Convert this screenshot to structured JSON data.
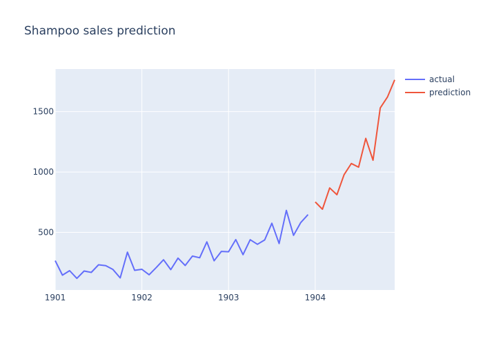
{
  "chart_data": {
    "type": "line",
    "title": "Shampoo sales prediction",
    "xlabel": "",
    "ylabel": "",
    "x_tick_labels": [
      "1901",
      "1902",
      "1903",
      "1904"
    ],
    "y_ticks": [
      500,
      1000,
      1500
    ],
    "y_tick_labels": [
      "500",
      "1000",
      "1500"
    ],
    "xlim": [
      "1901-01-01",
      "1904-12-01"
    ],
    "ylim": [
      23,
      1852
    ],
    "grid": true,
    "legend_position": "top-right",
    "series": [
      {
        "name": "actual",
        "color": "#636efa",
        "x": [
          "1901-01-01",
          "1901-02-01",
          "1901-03-01",
          "1901-04-01",
          "1901-05-01",
          "1901-06-01",
          "1901-07-01",
          "1901-08-01",
          "1901-09-01",
          "1901-10-01",
          "1901-11-01",
          "1901-12-01",
          "1902-01-01",
          "1902-02-01",
          "1902-03-01",
          "1902-04-01",
          "1902-05-01",
          "1902-06-01",
          "1902-07-01",
          "1902-08-01",
          "1902-09-01",
          "1902-10-01",
          "1902-11-01",
          "1902-12-01",
          "1903-01-01",
          "1903-02-01",
          "1903-03-01",
          "1903-04-01",
          "1903-05-01",
          "1903-06-01",
          "1903-07-01",
          "1903-08-01",
          "1903-09-01",
          "1903-10-01",
          "1903-11-01",
          "1903-12-01"
        ],
        "values": [
          266.0,
          145.9,
          183.1,
          119.3,
          180.3,
          168.5,
          231.8,
          224.5,
          192.8,
          122.9,
          336.5,
          185.9,
          194.3,
          149.5,
          210.1,
          273.3,
          191.4,
          287.0,
          226.0,
          303.6,
          289.9,
          421.6,
          264.5,
          342.3,
          339.7,
          440.4,
          315.9,
          439.3,
          401.3,
          437.4,
          575.5,
          407.6,
          682.0,
          475.3,
          581.3,
          646.9
        ]
      },
      {
        "name": "prediction",
        "color": "#ef553b",
        "x": [
          "1904-01-01",
          "1904-02-01",
          "1904-03-01",
          "1904-04-01",
          "1904-05-01",
          "1904-06-01",
          "1904-07-01",
          "1904-08-01",
          "1904-09-01",
          "1904-10-01",
          "1904-11-01",
          "1904-12-01"
        ],
        "values": [
          752,
          692,
          868,
          812,
          978,
          1070,
          1040,
          1278,
          1097,
          1530,
          1620,
          1762
        ]
      }
    ]
  }
}
